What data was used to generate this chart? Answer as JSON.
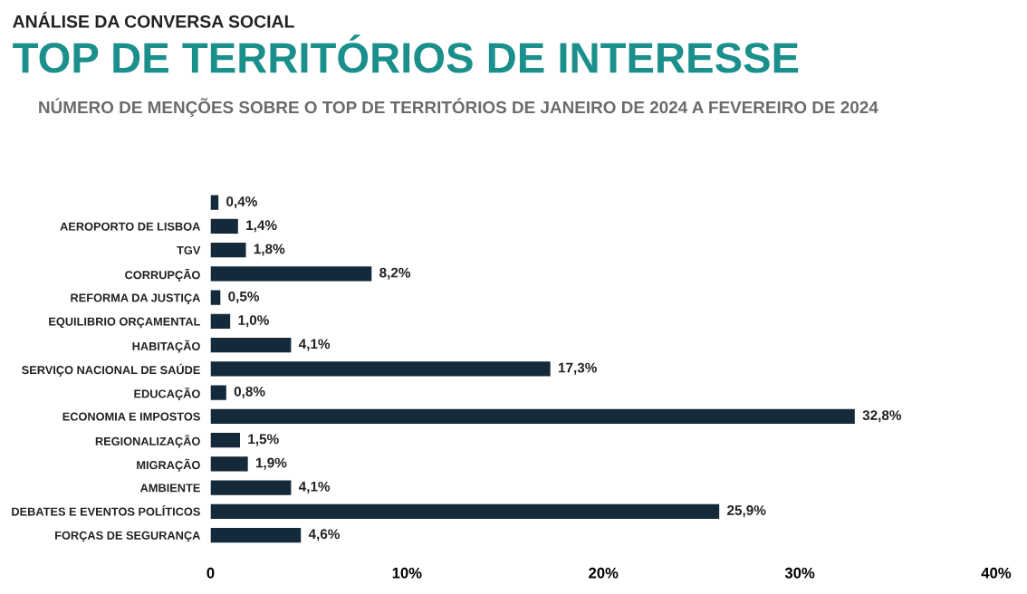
{
  "chart_data": {
    "type": "bar",
    "orientation": "horizontal",
    "title": "TOP DE TERRITÓRIOS DE INTERESSE",
    "subtitle": "NÚMERO DE MENÇÕES SOBRE O TOP DE TERRITÓRIOS DE JANEIRO DE 2024 A FEVEREIRO DE 2024",
    "annotations": [
      "ANÁLISE DA CONVERSA SOCIAL"
    ],
    "categories": [
      null,
      "AEROPORTO DE LISBOA",
      "TGV",
      "CORRUPÇÃO",
      "REFORMA DA JUSTIÇA",
      "EQUILIBRIO ORÇAMENTAL",
      "HABITAÇÃO",
      "SERVIÇO NACIONAL DE SAÚDE",
      "EDUCAÇÃO",
      "ECONOMIA E IMPOSTOS",
      "REGIONALIZAÇÃO",
      "MIGRAÇÃO",
      "AMBIENTE",
      "DEBATES E EVENTOS POLÍTICOS",
      "FORÇAS DE SEGURANÇA"
    ],
    "values": [
      0.4,
      1.4,
      1.8,
      8.2,
      0.5,
      1.0,
      4.1,
      17.3,
      0.8,
      32.8,
      1.5,
      1.9,
      4.1,
      25.9,
      4.6
    ],
    "value_labels": [
      "0,4%",
      "1,4%",
      "1,8%",
      "8,2%",
      "0,5%",
      "1,0%",
      "4,1%",
      "17,3%",
      "0,8%",
      "32,8%",
      "1,5%",
      "1,9%",
      "4,1%",
      "25,9%",
      "4,6%"
    ],
    "color": "#14293a",
    "xlim": [
      0,
      40
    ],
    "xticks": [
      {
        "value": 0,
        "label": "0"
      },
      {
        "value": 10,
        "label": "10%"
      },
      {
        "value": 20,
        "label": "20%"
      },
      {
        "value": 30,
        "label": "30%"
      },
      {
        "value": 40,
        "label": "40%"
      }
    ],
    "grid": false,
    "legend": false
  }
}
